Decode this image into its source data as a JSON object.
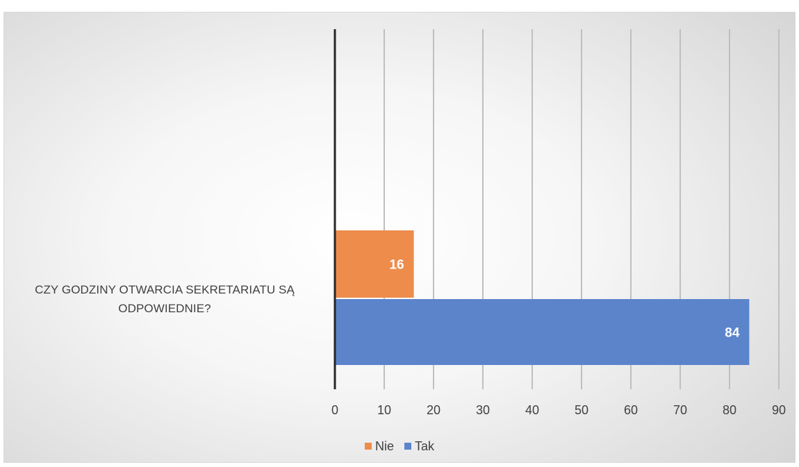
{
  "chart_data": {
    "type": "bar",
    "orientation": "horizontal",
    "categories": [
      "CZY GODZINY OTWARCIA SEKRETARIATU SĄ ODPOWIEDNIE?"
    ],
    "series": [
      {
        "name": "Nie",
        "values": [
          16
        ],
        "color": "#ED8C4B"
      },
      {
        "name": "Tak",
        "values": [
          84
        ],
        "color": "#5B84CB"
      }
    ],
    "xlim": [
      0,
      90
    ],
    "xticks": [
      0,
      10,
      20,
      30,
      40,
      50,
      60,
      70,
      80,
      90
    ],
    "data_labels": true,
    "grid": true,
    "legend_position": "bottom",
    "title": "",
    "xlabel": "",
    "ylabel": ""
  }
}
